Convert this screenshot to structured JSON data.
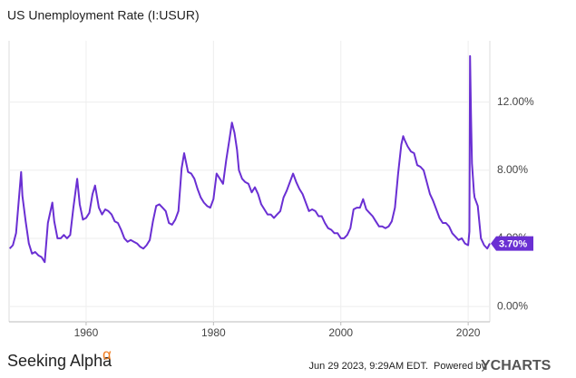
{
  "chart_data": {
    "type": "line",
    "title": "US Unemployment Rate (I:USUR)",
    "x": [
      1948.0,
      1948.5,
      1949.0,
      1949.8,
      1950.0,
      1950.5,
      1951.0,
      1951.5,
      1952.0,
      1952.5,
      1953.0,
      1953.5,
      1954.0,
      1954.7,
      1955.0,
      1955.5,
      1956.0,
      1956.5,
      1957.0,
      1957.5,
      1958.0,
      1958.6,
      1959.0,
      1959.5,
      1960.0,
      1960.5,
      1961.0,
      1961.4,
      1962.0,
      1962.5,
      1963.0,
      1963.5,
      1964.0,
      1964.5,
      1965.0,
      1965.5,
      1966.0,
      1966.5,
      1967.0,
      1967.5,
      1968.0,
      1968.5,
      1969.0,
      1969.5,
      1970.0,
      1970.5,
      1971.0,
      1971.5,
      1972.0,
      1972.5,
      1973.0,
      1973.5,
      1974.0,
      1974.5,
      1975.0,
      1975.4,
      1976.0,
      1976.5,
      1977.0,
      1977.5,
      1978.0,
      1978.5,
      1979.0,
      1979.5,
      1980.0,
      1980.5,
      1981.0,
      1981.5,
      1982.0,
      1982.5,
      1982.9,
      1983.3,
      1983.7,
      1984.0,
      1984.5,
      1985.0,
      1985.5,
      1986.0,
      1986.5,
      1987.0,
      1987.5,
      1988.0,
      1988.5,
      1989.0,
      1989.5,
      1990.0,
      1990.5,
      1991.0,
      1991.5,
      1992.0,
      1992.5,
      1993.0,
      1993.5,
      1994.0,
      1994.5,
      1995.0,
      1995.5,
      1996.0,
      1996.5,
      1997.0,
      1997.5,
      1998.0,
      1998.5,
      1999.0,
      1999.5,
      2000.0,
      2000.5,
      2001.0,
      2001.5,
      2002.0,
      2002.5,
      2003.0,
      2003.5,
      2004.0,
      2004.5,
      2005.0,
      2005.5,
      2006.0,
      2006.5,
      2007.0,
      2007.5,
      2008.0,
      2008.5,
      2009.0,
      2009.5,
      2009.8,
      2010.0,
      2010.5,
      2011.0,
      2011.5,
      2012.0,
      2012.5,
      2013.0,
      2013.5,
      2014.0,
      2014.5,
      2015.0,
      2015.5,
      2016.0,
      2016.5,
      2017.0,
      2017.5,
      2018.0,
      2018.5,
      2019.0,
      2019.5,
      2020.0,
      2020.2,
      2020.3,
      2020.45,
      2020.6,
      2020.9,
      2021.0,
      2021.5,
      2022.0,
      2022.5,
      2023.0,
      2023.4
    ],
    "series": [
      {
        "name": "US Unemployment Rate",
        "color": "#6a2fd3",
        "values": [
          3.4,
          3.6,
          4.3,
          7.9,
          6.5,
          5.0,
          3.7,
          3.1,
          3.2,
          3.0,
          2.9,
          2.6,
          4.9,
          6.1,
          5.0,
          4.0,
          4.0,
          4.2,
          4.0,
          4.2,
          5.8,
          7.5,
          6.0,
          5.1,
          5.2,
          5.5,
          6.6,
          7.1,
          5.8,
          5.4,
          5.7,
          5.6,
          5.4,
          5.0,
          4.9,
          4.5,
          4.0,
          3.8,
          3.9,
          3.8,
          3.7,
          3.5,
          3.4,
          3.6,
          3.9,
          5.0,
          5.9,
          6.0,
          5.8,
          5.6,
          4.9,
          4.8,
          5.1,
          5.6,
          8.1,
          9.0,
          7.9,
          7.8,
          7.5,
          6.9,
          6.4,
          6.1,
          5.9,
          5.8,
          6.3,
          7.8,
          7.5,
          7.2,
          8.6,
          9.8,
          10.8,
          10.2,
          9.2,
          8.0,
          7.5,
          7.3,
          7.2,
          6.7,
          7.0,
          6.6,
          6.0,
          5.7,
          5.4,
          5.4,
          5.2,
          5.4,
          5.6,
          6.4,
          6.8,
          7.3,
          7.8,
          7.3,
          6.9,
          6.6,
          6.1,
          5.6,
          5.7,
          5.6,
          5.3,
          5.3,
          4.9,
          4.6,
          4.5,
          4.3,
          4.3,
          4.0,
          4.0,
          4.2,
          4.6,
          5.7,
          5.8,
          5.8,
          6.3,
          5.7,
          5.5,
          5.3,
          5.0,
          4.7,
          4.7,
          4.6,
          4.7,
          5.0,
          5.8,
          7.8,
          9.5,
          10.0,
          9.8,
          9.4,
          9.1,
          9.0,
          8.3,
          8.2,
          8.0,
          7.3,
          6.6,
          6.2,
          5.7,
          5.2,
          4.9,
          4.9,
          4.7,
          4.3,
          4.1,
          3.9,
          4.0,
          3.7,
          3.6,
          4.4,
          14.7,
          11.1,
          8.4,
          6.7,
          6.4,
          5.9,
          4.0,
          3.6,
          3.4,
          3.7
        ]
      }
    ],
    "end_label": {
      "value": 3.7,
      "label": "3.70%"
    },
    "xlim": [
      1947.9,
      2023.4
    ],
    "xticks": [
      1960,
      1980,
      2000,
      2020
    ],
    "ylim": [
      -0.9,
      15.6
    ],
    "yticks": [
      {
        "value": 0,
        "label": "0.00%"
      },
      {
        "value": 4,
        "label": "4.00%"
      },
      {
        "value": 8,
        "label": "8.00%"
      },
      {
        "value": 12,
        "label": "12.00%"
      }
    ],
    "grid": true
  },
  "footer": {
    "logo": "Seeking Alpha",
    "logo_symbol": "α",
    "timestamp": "Jun 29 2023, 9:29AM EDT.",
    "powered_by": "Powered by",
    "brand": "YCHARTS"
  }
}
